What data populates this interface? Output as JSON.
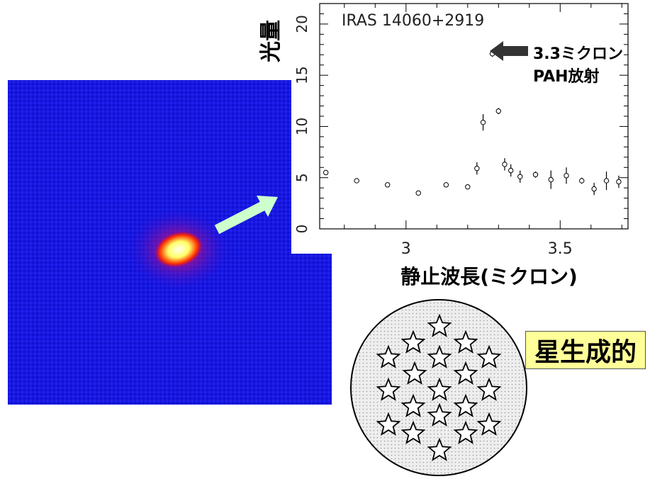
{
  "chart_data": {
    "type": "scatter",
    "title": "IRAS  14060+2919",
    "xlabel": "静止波長(ミクロン)",
    "ylabel": "光量",
    "xlim": [
      2.72,
      3.72
    ],
    "ylim": [
      0,
      22
    ],
    "x_ticks": [
      "3",
      "3.5"
    ],
    "y_ticks": [
      "0",
      "5",
      "10",
      "15",
      "20"
    ],
    "grid": false,
    "points": [
      {
        "x": 2.74,
        "y": 5.5,
        "err": 0.2
      },
      {
        "x": 2.84,
        "y": 4.7,
        "err": 0.2
      },
      {
        "x": 2.94,
        "y": 4.3,
        "err": 0.2
      },
      {
        "x": 3.04,
        "y": 3.5,
        "err": 0.2
      },
      {
        "x": 3.13,
        "y": 4.3,
        "err": 0.2
      },
      {
        "x": 3.2,
        "y": 4.1,
        "err": 0.2
      },
      {
        "x": 3.23,
        "y": 5.9,
        "err": 0.6
      },
      {
        "x": 3.25,
        "y": 10.4,
        "err": 0.8
      },
      {
        "x": 3.28,
        "y": 17.1,
        "err": 0.3
      },
      {
        "x": 3.3,
        "y": 11.5,
        "err": 0.3
      },
      {
        "x": 3.32,
        "y": 6.3,
        "err": 0.6
      },
      {
        "x": 3.34,
        "y": 5.7,
        "err": 0.6
      },
      {
        "x": 3.37,
        "y": 5.1,
        "err": 0.6
      },
      {
        "x": 3.42,
        "y": 5.3,
        "err": 0.3
      },
      {
        "x": 3.47,
        "y": 4.8,
        "err": 0.9
      },
      {
        "x": 3.52,
        "y": 5.2,
        "err": 0.8
      },
      {
        "x": 3.57,
        "y": 4.7,
        "err": 0.3
      },
      {
        "x": 3.61,
        "y": 3.9,
        "err": 0.6
      },
      {
        "x": 3.65,
        "y": 4.7,
        "err": 0.9
      },
      {
        "x": 3.69,
        "y": 4.6,
        "err": 0.6
      }
    ],
    "annotation": {
      "line1": "3.3ミクロン",
      "line2": "PAH放射",
      "points_to": {
        "x": 3.28,
        "y": 17.1
      }
    }
  },
  "starburst_label": "星生成的",
  "colors": {
    "image_background": "#1a1ae6",
    "source_core": "#ffffcc",
    "source_halo": "#ff2200",
    "pointer_arrow": "#ccffcc",
    "annotation_arrow": "#333333",
    "label_background": "#ffff99",
    "disk_fill": "#e8e8e8"
  }
}
